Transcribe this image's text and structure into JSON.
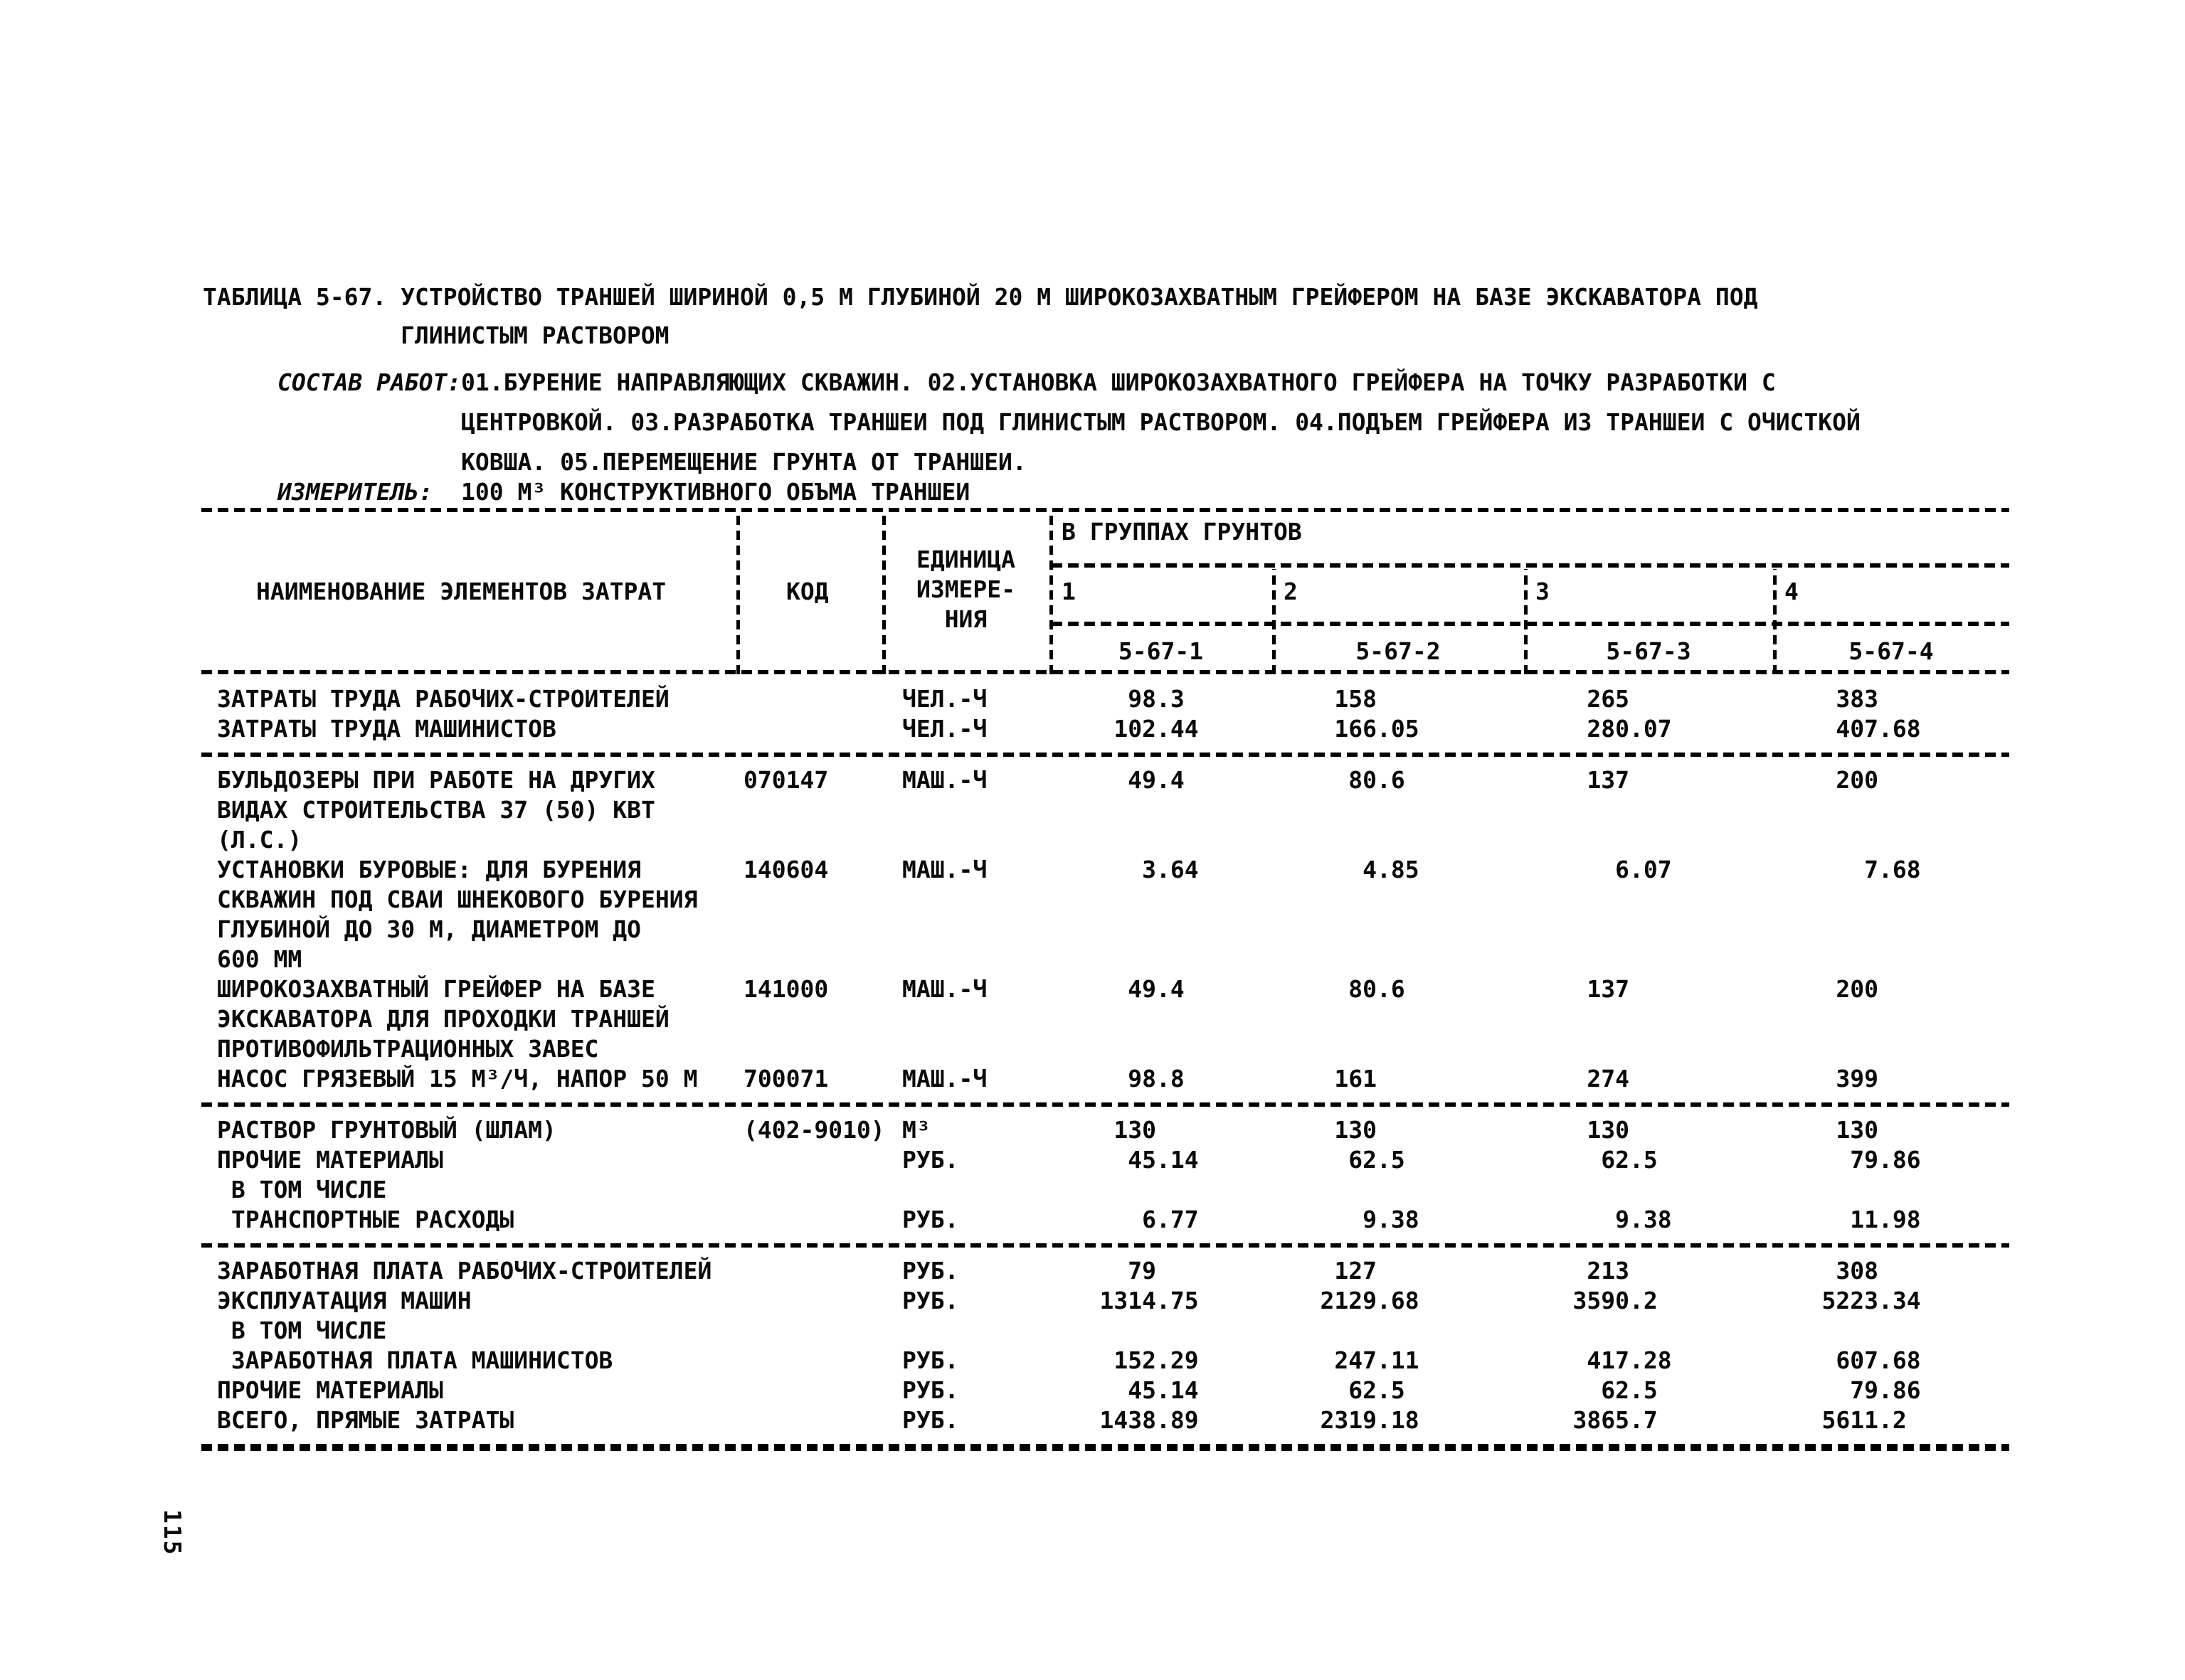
{
  "page_number": "115",
  "title": {
    "line1": "ТАБЛИЦА 5-67. УСТРОЙСТВО ТРАНШЕЙ ШИРИНОЙ 0,5 М ГЛУБИНОЙ 20 М ШИРОКОЗАХВАТНЫМ ГРЕЙФЕРОМ НА БАЗЕ ЭКСКАВАТОРА ПОД",
    "line2": "ГЛИНИСТЫМ РАСТВОРОМ"
  },
  "works": {
    "label": "СОСТАВ РАБОТ:",
    "line1": "01.БУРЕНИЕ НАПРАВЛЯЮЩИХ СКВАЖИН. 02.УСТАНОВКА ШИРОКОЗАХВАТНОГО ГРЕЙФЕРА НА ТОЧКУ РАЗРАБОТКИ С",
    "line2": "ЦЕНТРОВКОЙ. 03.РАЗРАБОТКА ТРАНШЕИ ПОД ГЛИНИСТЫМ РАСТВОРОМ. 04.ПОДЪЕМ ГРЕЙФЕРА ИЗ ТРАНШЕИ С ОЧИСТКОЙ",
    "line3": "КОВША. 05.ПЕРЕМЕЩЕНИЕ ГРУНТА ОТ ТРАНШЕИ."
  },
  "meter": {
    "label": "ИЗМЕРИТЕЛЬ:",
    "text": "100 М³ КОНСТРУКТИВНОГО ОБЪМА ТРАНШЕИ"
  },
  "table": {
    "header": {
      "name": "НАИМЕНОВАНИЕ ЭЛЕМЕНТОВ ЗАТРАТ",
      "code": "КОД",
      "unit": "ЕДИНИЦА\nИЗМЕРЕ-\nНИЯ",
      "groups_title": "В ГРУППАХ ГРУНТОВ",
      "g1": "1",
      "g2": "2",
      "g3": "3",
      "g4": "4",
      "code1": "5-67-1",
      "code2": "5-67-2",
      "code3": "5-67-3",
      "code4": "5-67-4"
    },
    "rows": [
      {
        "name": "ЗАТРАТЫ ТРУДА РАБОЧИХ-СТРОИТЕЛЕЙ",
        "code": "",
        "unit": "ЧЕЛ.-Ч",
        "v1": "98.3",
        "v2": "158",
        "v3": "265",
        "v4": "383"
      },
      {
        "name": "ЗАТРАТЫ ТРУДА МАШИНИСТОВ",
        "code": "",
        "unit": "ЧЕЛ.-Ч",
        "v1": "102.44",
        "v2": "166.05",
        "v3": "280.07",
        "v4": "407.68"
      },
      {
        "name": "БУЛЬДОЗЕРЫ ПРИ РАБОТЕ НА ДРУГИХ\nВИДАХ СТРОИТЕЛЬСТВА 37 (50) КВТ\n(Л.С.)",
        "code": "070147",
        "unit": "МАШ.-Ч",
        "v1": "49.4",
        "v2": "80.6",
        "v3": "137",
        "v4": "200"
      },
      {
        "name": "УСТАНОВКИ БУРОВЫЕ: ДЛЯ БУРЕНИЯ\nСКВАЖИН ПОД СВАИ ШНЕКОВОГО БУРЕНИЯ\nГЛУБИНОЙ ДО 30 М, ДИАМЕТРОМ ДО\n600 ММ",
        "code": "140604",
        "unit": "МАШ.-Ч",
        "v1": "3.64",
        "v2": "4.85",
        "v3": "6.07",
        "v4": "7.68"
      },
      {
        "name": "ШИРОКОЗАХВАТНЫЙ ГРЕЙФЕР НА БАЗЕ\nЭКСКАВАТОРА ДЛЯ ПРОХОДКИ ТРАНШЕЙ\nПРОТИВОФИЛЬТРАЦИОННЫХ ЗАВЕС",
        "code": "141000",
        "unit": "МАШ.-Ч",
        "v1": "49.4",
        "v2": "80.6",
        "v3": "137",
        "v4": "200"
      },
      {
        "name": "НАСОС ГРЯЗЕВЫЙ 15 М³/Ч, НАПОР 50 М",
        "code": "700071",
        "unit": "МАШ.-Ч",
        "v1": "98.8",
        "v2": "161",
        "v3": "274",
        "v4": "399"
      },
      {
        "name": "РАСТВОР ГРУНТОВЫЙ (ШЛАМ)",
        "code": "(402-9010)",
        "unit": "М³",
        "v1": "130",
        "v2": "130",
        "v3": "130",
        "v4": "130"
      },
      {
        "name": "ПРОЧИЕ МАТЕРИАЛЫ",
        "code": "",
        "unit": "РУБ.",
        "v1": "45.14",
        "v2": "62.5",
        "v3": "62.5",
        "v4": "79.86"
      },
      {
        "name": " В ТОМ ЧИСЛЕ",
        "code": "",
        "unit": "",
        "v1": "",
        "v2": "",
        "v3": "",
        "v4": ""
      },
      {
        "name": " ТРАНСПОРТНЫЕ РАСХОДЫ",
        "code": "",
        "unit": "РУБ.",
        "v1": "6.77",
        "v2": "9.38",
        "v3": "9.38",
        "v4": "11.98"
      },
      {
        "name": "ЗАРАБОТНАЯ ПЛАТА РАБОЧИХ-СТРОИТЕЛЕЙ",
        "code": "",
        "unit": "РУБ.",
        "v1": "79",
        "v2": "127",
        "v3": "213",
        "v4": "308"
      },
      {
        "name": "ЭКСПЛУАТАЦИЯ МАШИН",
        "code": "",
        "unit": "РУБ.",
        "v1": "1314.75",
        "v2": "2129.68",
        "v3": "3590.2",
        "v4": "5223.34"
      },
      {
        "name": " В ТОМ ЧИСЛЕ",
        "code": "",
        "unit": "",
        "v1": "",
        "v2": "",
        "v3": "",
        "v4": ""
      },
      {
        "name": " ЗАРАБОТНАЯ ПЛАТА МАШИНИСТОВ",
        "code": "",
        "unit": "РУБ.",
        "v1": "152.29",
        "v2": "247.11",
        "v3": "417.28",
        "v4": "607.68"
      },
      {
        "name": "ПРОЧИЕ МАТЕРИАЛЫ",
        "code": "",
        "unit": "РУБ.",
        "v1": "45.14",
        "v2": "62.5",
        "v3": "62.5",
        "v4": "79.86"
      },
      {
        "name": "ВСЕГО, ПРЯМЫЕ ЗАТРАТЫ",
        "code": "",
        "unit": "РУБ.",
        "v1": "1438.89",
        "v2": "2319.18",
        "v3": "3865.7",
        "v4": "5611.2"
      }
    ]
  }
}
